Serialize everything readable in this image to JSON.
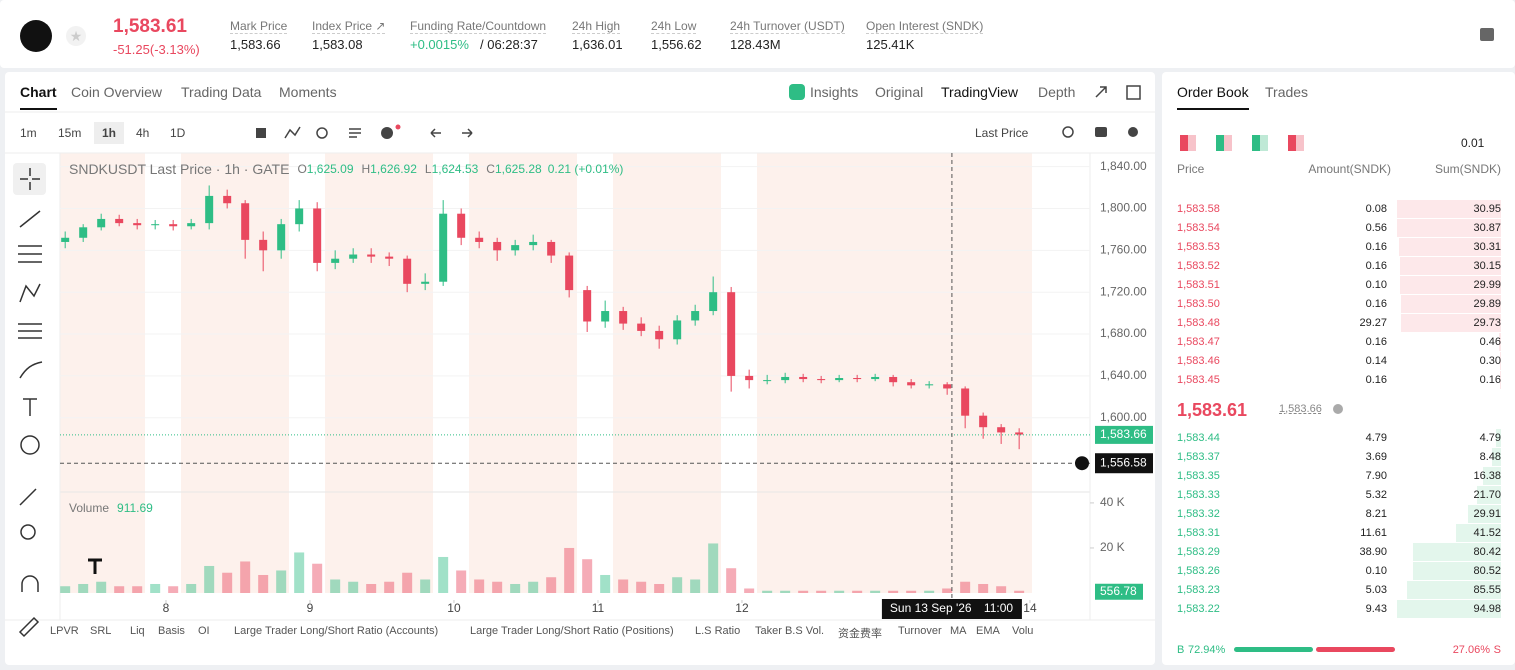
{
  "header": {
    "price": "1,583.61",
    "change": "-51.25(-3.13%)",
    "stats": [
      {
        "label": "Mark Price",
        "value": "1,583.66"
      },
      {
        "label": "Index Price ↗",
        "value": "1,583.08"
      },
      {
        "label": "Funding Rate/Countdown",
        "value": "+0.0015%",
        "extra": "/ 06:28:37"
      },
      {
        "label": "24h High",
        "value": "1,636.01"
      },
      {
        "label": "24h Low",
        "value": "1,556.62"
      },
      {
        "label": "24h Turnover (USDT)",
        "value": "128.43M"
      },
      {
        "label": "Open Interest (SNDK)",
        "value": "125.41K"
      }
    ]
  },
  "chart_panel": {
    "tabs": [
      "Chart",
      "Coin Overview",
      "Trading Data",
      "Moments"
    ],
    "views": [
      "Insights",
      "Original",
      "TradingView",
      "Depth"
    ],
    "intervals": [
      "1m",
      "15m",
      "1h",
      "4h",
      "1D"
    ],
    "price_type": "Last Price",
    "indicators": [
      "LPVR",
      "SRL",
      "Liq",
      "Basis",
      "OI",
      "Large Trader Long/Short Ratio (Accounts)",
      "Large Trader Long/Short Ratio (Positions)",
      "L.S Ratio",
      "Taker B.S Vol.",
      "资金费率",
      "Turnover",
      "MA",
      "EMA",
      "Volu"
    ]
  },
  "chart_data": {
    "type": "candlestick",
    "title": "SNDKUSDT Last Price · 1h · GATE",
    "legend": [
      {
        "label": "O",
        "value": "1,625.09"
      },
      {
        "label": "H",
        "value": "1,626.92"
      },
      {
        "label": "L",
        "value": "1,624.53"
      },
      {
        "label": "C",
        "value": "1,625.28"
      }
    ],
    "change": "0.21 (+0.01%)",
    "volume_label": "Volume",
    "volume_value": "911.69",
    "x": [
      7.3,
      7.425,
      7.55,
      7.675,
      7.8,
      7.925,
      8.05,
      8.175,
      8.3,
      8.425,
      8.55,
      8.675,
      8.8,
      8.925,
      9.05,
      9.175,
      9.3,
      9.425,
      9.55,
      9.675,
      9.8,
      9.925,
      10.05,
      10.175,
      10.3,
      10.425,
      10.55,
      10.675,
      10.8,
      10.925,
      11.05,
      11.175,
      11.3,
      11.425,
      11.55,
      11.675,
      11.8,
      11.925,
      12.05,
      12.175,
      12.3,
      12.425,
      12.55,
      12.675,
      12.8,
      12.925,
      13.05,
      13.175,
      13.3,
      13.425,
      13.55,
      13.675,
      13.8,
      13.925
    ],
    "candles": [
      [
        1768,
        1778,
        1762,
        1772
      ],
      [
        1772,
        1785,
        1768,
        1782
      ],
      [
        1782,
        1795,
        1779,
        1790
      ],
      [
        1790,
        1794,
        1783,
        1786
      ],
      [
        1786,
        1790,
        1780,
        1784
      ],
      [
        1784,
        1789,
        1780,
        1785
      ],
      [
        1785,
        1789,
        1779,
        1783
      ],
      [
        1783,
        1790,
        1780,
        1786
      ],
      [
        1786,
        1822,
        1780,
        1812
      ],
      [
        1812,
        1818,
        1800,
        1805
      ],
      [
        1805,
        1808,
        1752,
        1770
      ],
      [
        1770,
        1778,
        1740,
        1760
      ],
      [
        1760,
        1790,
        1752,
        1785
      ],
      [
        1785,
        1808,
        1778,
        1800
      ],
      [
        1800,
        1806,
        1740,
        1748
      ],
      [
        1748,
        1760,
        1742,
        1752
      ],
      [
        1752,
        1762,
        1748,
        1756
      ],
      [
        1756,
        1762,
        1748,
        1754
      ],
      [
        1754,
        1758,
        1745,
        1752
      ],
      [
        1752,
        1755,
        1720,
        1728
      ],
      [
        1728,
        1738,
        1722,
        1730
      ],
      [
        1730,
        1808,
        1726,
        1795
      ],
      [
        1795,
        1800,
        1765,
        1772
      ],
      [
        1772,
        1778,
        1762,
        1768
      ],
      [
        1768,
        1772,
        1750,
        1760
      ],
      [
        1760,
        1770,
        1755,
        1765
      ],
      [
        1765,
        1775,
        1760,
        1768
      ],
      [
        1768,
        1770,
        1748,
        1755
      ],
      [
        1755,
        1758,
        1715,
        1722
      ],
      [
        1722,
        1726,
        1682,
        1692
      ],
      [
        1692,
        1712,
        1686,
        1702
      ],
      [
        1702,
        1706,
        1684,
        1690
      ],
      [
        1690,
        1696,
        1678,
        1683
      ],
      [
        1683,
        1688,
        1666,
        1675
      ],
      [
        1675,
        1698,
        1670,
        1693
      ],
      [
        1693,
        1708,
        1688,
        1702
      ],
      [
        1702,
        1735,
        1698,
        1720
      ],
      [
        1720,
        1725,
        1625,
        1640
      ],
      [
        1640,
        1646,
        1628,
        1636
      ],
      [
        1636,
        1641,
        1632,
        1636
      ],
      [
        1636,
        1643,
        1633,
        1639
      ],
      [
        1639,
        1642,
        1634,
        1637
      ],
      [
        1637,
        1640,
        1633,
        1636
      ],
      [
        1636,
        1641,
        1634,
        1638
      ],
      [
        1638,
        1641,
        1634,
        1637
      ],
      [
        1637,
        1642,
        1635,
        1639
      ],
      [
        1639,
        1641,
        1630,
        1634
      ],
      [
        1634,
        1637,
        1628,
        1631
      ],
      [
        1631,
        1635,
        1628,
        1632
      ],
      [
        1632,
        1634,
        1622,
        1628
      ],
      [
        1628,
        1630,
        1590,
        1602
      ],
      [
        1602,
        1605,
        1580,
        1591
      ],
      [
        1591,
        1594,
        1575,
        1586
      ],
      [
        1586,
        1590,
        1570,
        1584
      ]
    ],
    "volume": [
      3,
      4,
      5,
      3,
      3,
      4,
      3,
      4,
      12,
      9,
      14,
      8,
      10,
      18,
      13,
      6,
      5,
      4,
      5,
      9,
      6,
      16,
      10,
      6,
      5,
      4,
      5,
      7,
      20,
      15,
      8,
      6,
      5,
      4,
      7,
      6,
      22,
      11,
      2,
      1,
      1,
      1,
      1,
      1,
      1,
      1,
      1,
      1,
      1,
      2,
      5,
      4,
      3,
      1
    ],
    "xlim": [
      7.264,
      14.417
    ],
    "xticks": [
      8,
      9,
      10,
      11,
      12,
      14
    ],
    "ylim": [
      1531,
      1853
    ],
    "yticks": [
      {
        "value": 1600,
        "label": "1,600.00"
      },
      {
        "value": 1640,
        "label": "1,640.00"
      },
      {
        "value": 1680,
        "label": "1,680.00"
      },
      {
        "value": 1720,
        "label": "1,720.00"
      },
      {
        "value": 1760,
        "label": "1,760.00"
      },
      {
        "value": 1800,
        "label": "1,800.00"
      },
      {
        "value": 1840,
        "label": "1,840.00"
      }
    ],
    "volume_lim": [
      0,
      44.4
    ],
    "volume_ticks": [
      {
        "value": 20,
        "label": "20 K"
      },
      {
        "value": 40,
        "label": "40 K"
      }
    ],
    "last_price": {
      "value": 1583.66,
      "label": "1,583.66"
    },
    "last_volume": {
      "value": 0.55678,
      "label": "556.78"
    },
    "crosshair": {
      "x": 13.458,
      "date": "Sun 13 Sep '26",
      "time": "11:00",
      "price": {
        "value": 1556.58,
        "label": "1,556.58"
      }
    },
    "up_color": "#2ebd85",
    "down_color": "#e9485f"
  },
  "order_book": {
    "tabs": [
      "Order Book",
      "Trades"
    ],
    "precision": "0.01",
    "columns": [
      "Price",
      "Amount(SNDK)",
      "Sum(SNDK)"
    ],
    "asks": [
      [
        "1,583.58",
        "0.08",
        "30.95"
      ],
      [
        "1,583.54",
        "0.56",
        "30.87"
      ],
      [
        "1,583.53",
        "0.16",
        "30.31"
      ],
      [
        "1,583.52",
        "0.16",
        "30.15"
      ],
      [
        "1,583.51",
        "0.10",
        "29.99"
      ],
      [
        "1,583.50",
        "0.16",
        "29.89"
      ],
      [
        "1,583.48",
        "29.27",
        "29.73"
      ],
      [
        "1,583.47",
        "0.16",
        "0.46"
      ],
      [
        "1,583.46",
        "0.14",
        "0.30"
      ],
      [
        "1,583.45",
        "0.16",
        "0.16"
      ]
    ],
    "mid_price": "1,583.61",
    "mark_price": "1,583.66",
    "bids": [
      [
        "1,583.44",
        "4.79",
        "4.79"
      ],
      [
        "1,583.37",
        "3.69",
        "8.48"
      ],
      [
        "1,583.35",
        "7.90",
        "16.38"
      ],
      [
        "1,583.33",
        "5.32",
        "21.70"
      ],
      [
        "1,583.32",
        "8.21",
        "29.91"
      ],
      [
        "1,583.31",
        "11.61",
        "41.52"
      ],
      [
        "1,583.29",
        "38.90",
        "80.42"
      ],
      [
        "1,583.26",
        "0.10",
        "80.52"
      ],
      [
        "1,583.23",
        "5.03",
        "85.55"
      ],
      [
        "1,583.22",
        "9.43",
        "94.98"
      ]
    ],
    "buy": {
      "label": "B",
      "value": 72.94,
      "value_label": "72.94%"
    },
    "sell": {
      "label": "S",
      "value": 27.06,
      "value_label": "27.06%"
    }
  }
}
